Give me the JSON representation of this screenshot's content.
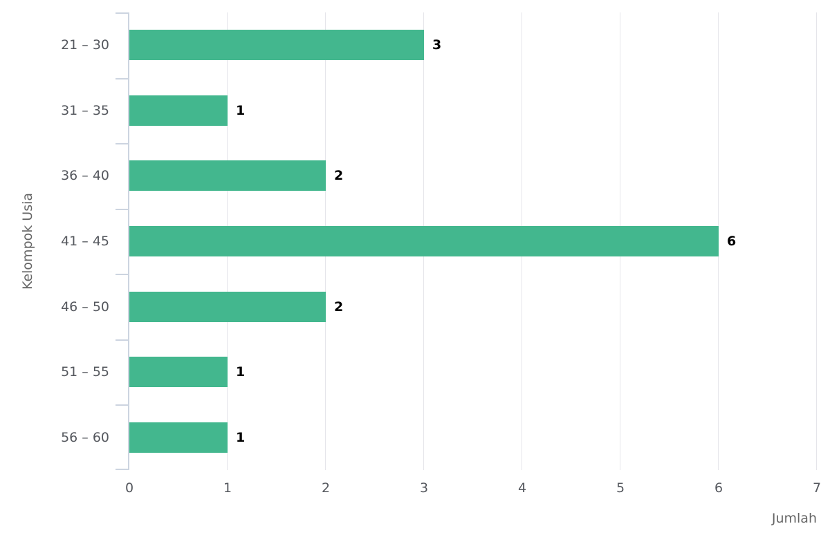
{
  "chart_data": {
    "type": "bar",
    "orientation": "horizontal",
    "title": "",
    "categories": [
      "21 – 30",
      "31 – 35",
      "36 – 40",
      "41 – 45",
      "46 – 50",
      "51 – 55",
      "56 – 60"
    ],
    "values": [
      3,
      1,
      2,
      6,
      2,
      1,
      1
    ],
    "data_labels": [
      "3",
      "1",
      "2",
      "6",
      "2",
      "1",
      "1"
    ],
    "xlabel": "Jumlah",
    "ylabel": "Kelompok Usia",
    "xlim": [
      0,
      7
    ],
    "xticks": [
      "0",
      "1",
      "2",
      "3",
      "4",
      "5",
      "6",
      "7"
    ],
    "grid": "vertical-only",
    "legend": "none",
    "colors": {
      "bar": "#43b78e",
      "gridline": "#e5e5ea",
      "axis_line": "#ccd4e0",
      "tick_mark": "#ccd4e0",
      "category_label": "#55585e",
      "x_tick_label": "#55585e",
      "axis_title": "#666666",
      "data_label": "#000000",
      "background": "#ffffff"
    }
  }
}
